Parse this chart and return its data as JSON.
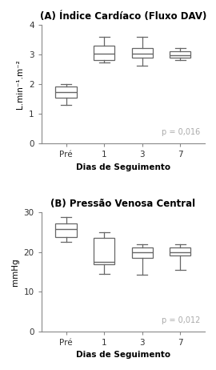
{
  "chart_A": {
    "title": "(A) Índice Cardíaco (Fluxo DAV)",
    "ylabel": "L.min⁻¹.m⁻²",
    "xlabel": "Dias de Seguimento",
    "pvalue": "p = 0,016",
    "ylim": [
      0,
      4
    ],
    "yticks": [
      0,
      1,
      2,
      3,
      4
    ],
    "categories": [
      "Pré",
      "1",
      "3",
      "7"
    ],
    "boxes": [
      {
        "whislo": 1.3,
        "q1": 1.55,
        "med": 1.72,
        "q3": 1.93,
        "whishi": 2.0
      },
      {
        "whislo": 2.72,
        "q1": 2.82,
        "med": 3.02,
        "q3": 3.3,
        "whishi": 3.58
      },
      {
        "whislo": 2.62,
        "q1": 2.88,
        "med": 3.02,
        "q3": 3.22,
        "whishi": 3.58
      },
      {
        "whislo": 2.82,
        "q1": 2.88,
        "med": 2.98,
        "q3": 3.1,
        "whishi": 3.22
      }
    ]
  },
  "chart_B": {
    "title": "(B) Pressão Venosa Central",
    "ylabel": "mmHg",
    "xlabel": "Dias de Seguimento",
    "pvalue": "p = 0,012",
    "ylim": [
      0,
      30
    ],
    "yticks": [
      0,
      10,
      20,
      30
    ],
    "categories": [
      "Pré",
      "1",
      "3",
      "7"
    ],
    "boxes": [
      {
        "whislo": 22.5,
        "q1": 23.8,
        "med": 25.8,
        "q3": 27.2,
        "whishi": 28.8
      },
      {
        "whislo": 14.5,
        "q1": 17.0,
        "med": 17.5,
        "q3": 23.5,
        "whishi": 25.0
      },
      {
        "whislo": 14.2,
        "q1": 18.5,
        "med": 20.0,
        "q3": 21.2,
        "whishi": 22.0
      },
      {
        "whislo": 15.5,
        "q1": 19.2,
        "med": 20.0,
        "q3": 21.2,
        "whishi": 22.0
      }
    ]
  },
  "box_width": 0.55,
  "box_color": "white",
  "box_edgecolor": "#666666",
  "median_color": "#666666",
  "whisker_color": "#666666",
  "cap_color": "#666666",
  "background_color": "#ffffff",
  "axes_bg_color": "#ffffff",
  "title_fontsize": 8.5,
  "label_fontsize": 7.5,
  "tick_fontsize": 7.5,
  "pvalue_fontsize": 7,
  "pvalue_color": "#aaaaaa"
}
